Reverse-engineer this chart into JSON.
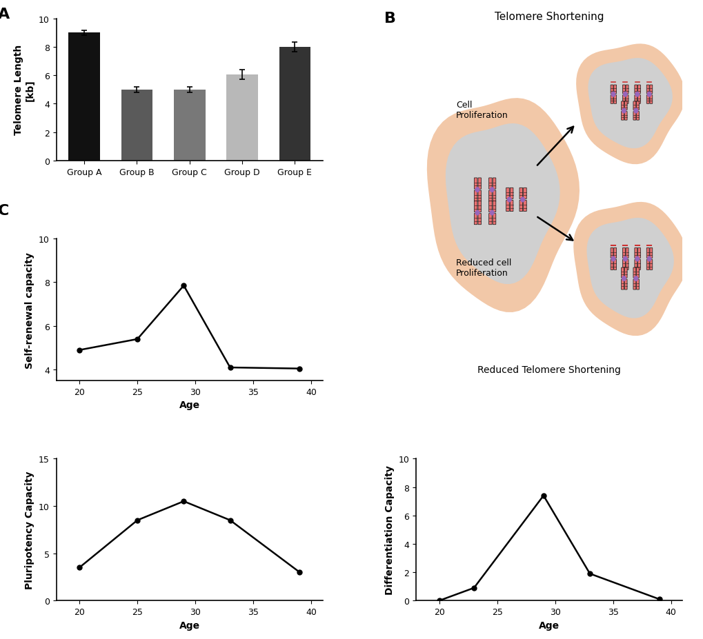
{
  "bar_groups": [
    "Group A",
    "Group B",
    "Group C",
    "Group D",
    "Group E"
  ],
  "bar_values": [
    9.0,
    5.0,
    5.0,
    6.05,
    8.0
  ],
  "bar_errors": [
    0.15,
    0.2,
    0.2,
    0.35,
    0.35
  ],
  "bar_colors": [
    "#111111",
    "#5a5a5a",
    "#787878",
    "#b8b8b8",
    "#333333"
  ],
  "bar_ylabel": "Telomere Length\n[kb]",
  "bar_ylim": [
    0,
    10
  ],
  "bar_yticks": [
    0,
    2,
    4,
    6,
    8,
    10
  ],
  "self_renewal_x": [
    20,
    25,
    29,
    33,
    39
  ],
  "self_renewal_y": [
    4.9,
    5.4,
    7.85,
    4.1,
    4.05
  ],
  "self_renewal_ylabel": "Self-renewal capacity",
  "self_renewal_xlabel": "Age",
  "self_renewal_ylim": [
    3.5,
    10
  ],
  "self_renewal_yticks": [
    4,
    6,
    8,
    10
  ],
  "self_renewal_xlim": [
    18,
    41
  ],
  "self_renewal_xticks": [
    20,
    25,
    30,
    35,
    40
  ],
  "pluripotency_x": [
    20,
    25,
    29,
    33,
    39
  ],
  "pluripotency_y": [
    3.5,
    8.5,
    10.5,
    8.5,
    3.0
  ],
  "pluripotency_ylabel": "Pluripotency Capacity",
  "pluripotency_xlabel": "Age",
  "pluripotency_ylim": [
    0,
    15
  ],
  "pluripotency_yticks": [
    0,
    5,
    10,
    15
  ],
  "pluripotency_xlim": [
    18,
    41
  ],
  "pluripotency_xticks": [
    20,
    25,
    30,
    35,
    40
  ],
  "differentiation_x": [
    20,
    23,
    29,
    33,
    39
  ],
  "differentiation_y": [
    0.0,
    0.9,
    7.4,
    1.9,
    0.1
  ],
  "differentiation_ylabel": "Differentiation Capacity",
  "differentiation_xlabel": "Age",
  "differentiation_ylim": [
    0,
    10
  ],
  "differentiation_yticks": [
    0,
    2,
    4,
    6,
    8,
    10
  ],
  "differentiation_xlim": [
    18,
    41
  ],
  "differentiation_xticks": [
    20,
    25,
    30,
    35,
    40
  ],
  "label_A": "A",
  "label_B": "B",
  "label_C": "C",
  "bg_color": "#ffffff",
  "line_color": "#000000",
  "line_width": 1.8,
  "marker_size": 5,
  "axis_label_fontsize": 10,
  "tick_fontsize": 9,
  "panel_label_fontsize": 16,
  "peach_color": "#F2C8A8",
  "gray_cell_color": "#d0d0d0",
  "chrom_body_color": "#E87070",
  "chrom_stripe_color": "#222222",
  "centromere_color": "#9966BB",
  "telomere_bracket_color": "#CC3333"
}
